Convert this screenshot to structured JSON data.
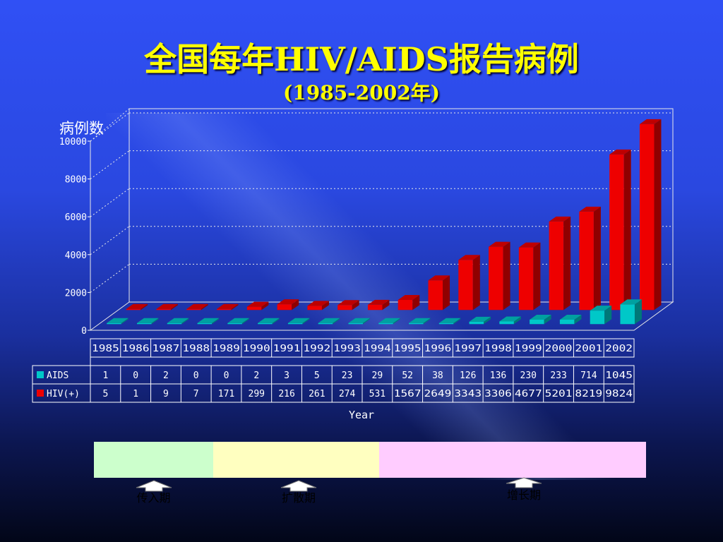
{
  "title": "全国每年HIV/AIDS报告病例",
  "subtitle": "(1985-2002年)",
  "chart_data": {
    "type": "bar",
    "title": "全国每年HIV/AIDS报告病例",
    "subtitle": "(1985-2002年)",
    "ylabel": "病例数",
    "xlabel": "Year",
    "ylim": [
      0,
      10000
    ],
    "yticks": [
      0,
      2000,
      4000,
      6000,
      8000,
      10000
    ],
    "grid": true,
    "legend": "data-table-left",
    "categories": [
      "1985",
      "1986",
      "1987",
      "1988",
      "1989",
      "1990",
      "1991",
      "1992",
      "1993",
      "1994",
      "1995",
      "1996",
      "1997",
      "1998",
      "1999",
      "2000",
      "2001",
      "2002"
    ],
    "series": [
      {
        "name": "AIDS",
        "color": "#00c8c8",
        "values": [
          1,
          0,
          2,
          0,
          0,
          2,
          3,
          5,
          23,
          29,
          52,
          38,
          126,
          136,
          230,
          233,
          714,
          1045
        ]
      },
      {
        "name": "HIV(+)",
        "color": "#ee0000",
        "values": [
          5,
          1,
          9,
          7,
          171,
          299,
          216,
          261,
          274,
          531,
          1567,
          2649,
          3343,
          3306,
          4677,
          5201,
          8219,
          9824
        ]
      }
    ]
  },
  "phases": [
    {
      "label": "传入期",
      "color": "#ccffcc"
    },
    {
      "label": "扩散期",
      "color": "#ffffc0"
    },
    {
      "label": "增长期",
      "color": "#ffccff"
    }
  ]
}
